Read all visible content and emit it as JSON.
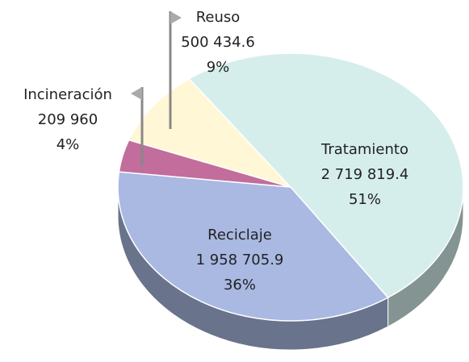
{
  "chart_data": {
    "type": "pie",
    "categories": [
      "Tratamiento",
      "Reciclaje",
      "Incineración",
      "Reuso"
    ],
    "values": [
      2719819.4,
      1958705.9,
      209960,
      500434.6
    ],
    "value_labels": [
      "2 719 819.4",
      "1 958 705.9",
      "209 960",
      "500 434.6"
    ],
    "percent_labels": [
      "51%",
      "36%",
      "4%",
      "9%"
    ],
    "colors": [
      "#d5eeec",
      "#a9b9e2",
      "#c26d9c",
      "#fff7d6"
    ]
  }
}
